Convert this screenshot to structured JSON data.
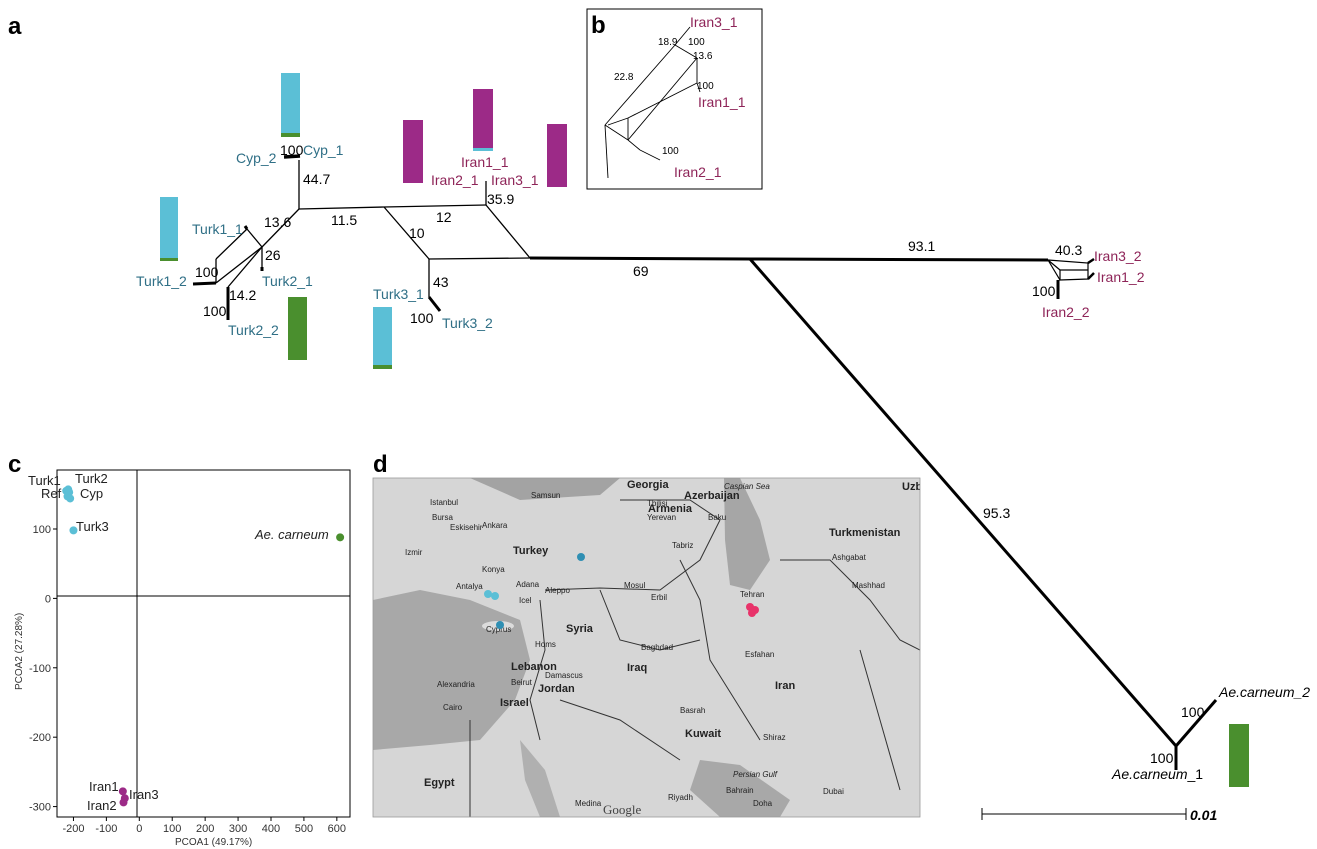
{
  "panels": {
    "a": "a",
    "b": "b",
    "c": "c",
    "d": "d"
  },
  "tree": {
    "support": {
      "cyp_node": "100",
      "cyp_branch": "44.7",
      "b_11_5": "11.5",
      "b_12": "12",
      "b_10": "10",
      "b_13_6": "13.6",
      "b_26": "26",
      "turk1_100": "100",
      "b_14_2": "14.2",
      "turk2_100": "100",
      "b_43": "43",
      "turk3_100": "100",
      "b_35_9": "35.9",
      "b_69": "69",
      "b_93_1": "93.1",
      "b_40_3": "40.3",
      "iran2_2_100": "100",
      "b_95_3": "95.3",
      "acarn_upper_100": "100",
      "acarn_lower_100": "100"
    },
    "taxa": {
      "cyp1": "Cyp_1",
      "cyp2": "Cyp_2",
      "turk1_1": "Turk1_1",
      "turk1_2": "Turk1_2",
      "turk2_1": "Turk2_1",
      "turk2_2": "Turk2_2",
      "turk3_1": "Turk3_1",
      "turk3_2": "Turk3_2",
      "iran1_1": "Iran1_1",
      "iran2_1": "Iran2_1",
      "iran3_1": "Iran3_1",
      "iran3_2": "Iran3_2",
      "iran1_2": "Iran1_2",
      "iran2_2": "Iran2_2",
      "acarn2": "Ae.carneum_2",
      "acarn1_italic": "Ae.carneum",
      "acarn1_suffix": "_1"
    },
    "scale_label": "0.01"
  },
  "inset_b": {
    "taxa": {
      "iran3_1": "Iran3_1",
      "iran1_1": "Iran1_1",
      "iran2_1": "Iran2_1"
    },
    "support": {
      "s1": "18.9",
      "s2": "100",
      "s3": "13.6",
      "s4": "22.8",
      "s5": "100",
      "s6": "100"
    }
  },
  "colors": {
    "blue": "#5bbfd6",
    "green": "#4a8f2e",
    "purple": "#9c2a87",
    "pink": "#e8336a",
    "blue_label": "#2f6f86",
    "red_label": "#8e2458"
  },
  "pcoa": {
    "xlabel": "PCOA1 (49.17%)",
    "ylabel": "PCOA2 (27.28%)",
    "xticks": [
      "-200",
      "-100",
      "0",
      "100",
      "200",
      "300",
      "400",
      "500",
      "600"
    ],
    "yticks": [
      "100",
      "0",
      "-100",
      "-200",
      "-300"
    ],
    "point_labels": {
      "turk1": "Turk1",
      "turk2": "Turk2",
      "ref": "Ref",
      "cyp": "Cyp",
      "turk3": "Turk3",
      "acarn": "Ae. carneum",
      "iran1": "Iran1",
      "iran2": "Iran2",
      "iran3": "Iran3"
    }
  },
  "chart_data": {
    "type": "scatter",
    "title": "",
    "xlabel": "PCOA1 (49.17%)",
    "ylabel": "PCOA2 (27.28%)",
    "xlim": [
      -250,
      640
    ],
    "ylim": [
      -315,
      185
    ],
    "grid": false,
    "series": [
      {
        "name": "Turk1",
        "color": "#5bbfd6",
        "points": [
          [
            -222,
            155
          ],
          [
            -216,
            157
          ]
        ]
      },
      {
        "name": "Turk2",
        "color": "#5bbfd6",
        "points": [
          [
            -213,
            153
          ]
        ]
      },
      {
        "name": "Ref",
        "color": "#5bbfd6",
        "points": [
          [
            -218,
            147
          ]
        ]
      },
      {
        "name": "Cyp",
        "color": "#5bbfd6",
        "points": [
          [
            -210,
            144
          ]
        ]
      },
      {
        "name": "Turk3",
        "color": "#5bbfd6",
        "points": [
          [
            -200,
            98
          ]
        ]
      },
      {
        "name": "Ae. carneum",
        "color": "#4a8f2e",
        "points": [
          [
            610,
            88
          ]
        ]
      },
      {
        "name": "Iran1",
        "color": "#9c2a87",
        "points": [
          [
            -50,
            -278
          ]
        ]
      },
      {
        "name": "Iran3",
        "color": "#9c2a87",
        "points": [
          [
            -44,
            -288
          ]
        ]
      },
      {
        "name": "Iran2",
        "color": "#9c2a87",
        "points": [
          [
            -48,
            -294
          ]
        ]
      }
    ]
  },
  "map": {
    "countries": {
      "georgia": "Georgia",
      "turkey": "Turkey",
      "armenia": "Armenia",
      "azerbaijan": "Azerbaijan",
      "turkmenistan": "Turkmenistan",
      "syria": "Syria",
      "iraq": "Iraq",
      "iran": "Iran",
      "egypt": "Egypt",
      "jordan": "Jordan",
      "lebanon": "Lebanon",
      "israel": "Israel",
      "kuwait": "Kuwait",
      "uzb": "Uzb"
    },
    "cities": {
      "istanbul": "Istanbul",
      "bursa": "Bursa",
      "eskisehir": "Eskisehir",
      "ankara": "Ankara",
      "samsun": "Samsun",
      "izmir": "Izmir",
      "konya": "Konya",
      "antalya": "Antalya",
      "adana": "Adana",
      "aleppo": "Aleppo",
      "homs": "Homs",
      "beirut": "Beirut",
      "damascus": "Damascus",
      "tbilisi": "Tbilisi",
      "yerevan": "Yerevan",
      "baku": "Baku",
      "tabriz": "Tabriz",
      "mosul": "Mosul",
      "erbil": "Erbil",
      "tehran": "Tehran",
      "baghdad": "Baghdad",
      "esfahan": "Esfahan",
      "shiraz": "Shiraz",
      "basrah": "Basrah",
      "alexandria": "Alexandria",
      "cairo": "Cairo",
      "mashhad": "Mashhad",
      "ashgabat": "Ashgabat",
      "riyadh": "Riyadh",
      "medina": "Medina",
      "bahrain": "Bahrain",
      "dubai": "Dubai",
      "doha": "Doha",
      "cyprus": "Cyprus",
      "icel": "Icel"
    },
    "seas": {
      "caspian": "Caspian Sea",
      "persian_gulf": "Persian Gulf"
    },
    "attribution": "Google"
  }
}
